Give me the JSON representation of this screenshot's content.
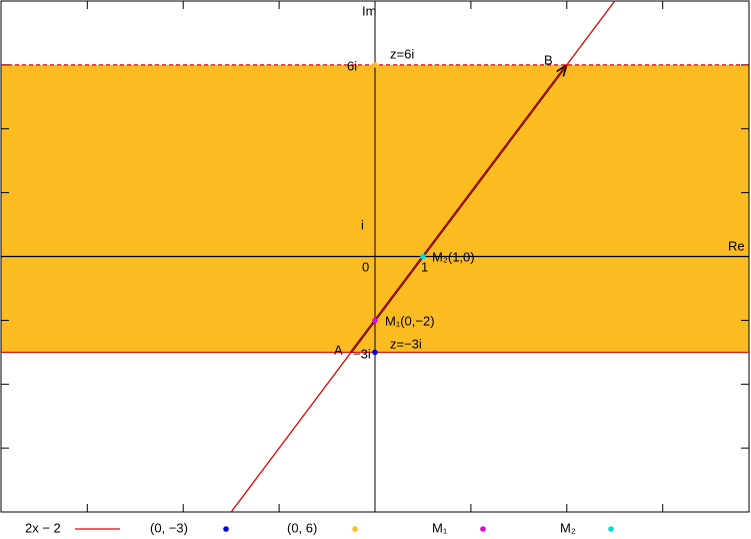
{
  "chart_data": {
    "type": "scatter",
    "x_label": "Re",
    "y_label": "Im",
    "xlim": [
      -7.8,
      7.8
    ],
    "ylim": [
      -8,
      8
    ],
    "xticks": [
      -6,
      -4,
      -2,
      2,
      4,
      6
    ],
    "yticks": [
      -6,
      -4,
      -2,
      2,
      4,
      6
    ],
    "band": {
      "y": [
        -3,
        6
      ],
      "color": "#fbbc22"
    },
    "lines": [
      {
        "name": "2x − 2",
        "color": "#e00000",
        "slope": 2,
        "intercept": -2
      }
    ],
    "hlines": [
      {
        "y": 6,
        "color": "#e00000",
        "dashed": true
      },
      {
        "y": -3,
        "color": "#e00000",
        "dashed": false
      }
    ],
    "arrow": {
      "from": [
        -0.5,
        -3
      ],
      "to": [
        4,
        6
      ],
      "color": "#000000"
    },
    "series": [
      {
        "name": "(0, −3)",
        "color": "#0000dd",
        "x": [
          0
        ],
        "y": [
          -3
        ]
      },
      {
        "name": "(0, 6)",
        "color": "#fbbc22",
        "x": [
          0
        ],
        "y": [
          6
        ]
      },
      {
        "name": "M₁",
        "color": "#e000e0",
        "x": [
          0
        ],
        "y": [
          -2
        ]
      },
      {
        "name": "M₂",
        "color": "#00dddd",
        "x": [
          1
        ],
        "y": [
          0
        ]
      }
    ],
    "annotations": [
      "z=6i",
      "6i",
      "B",
      "i",
      "0",
      "1",
      "M₂(1,0)",
      "M₁(0,−2)",
      "A",
      "−3i",
      "z=−3i"
    ]
  }
}
